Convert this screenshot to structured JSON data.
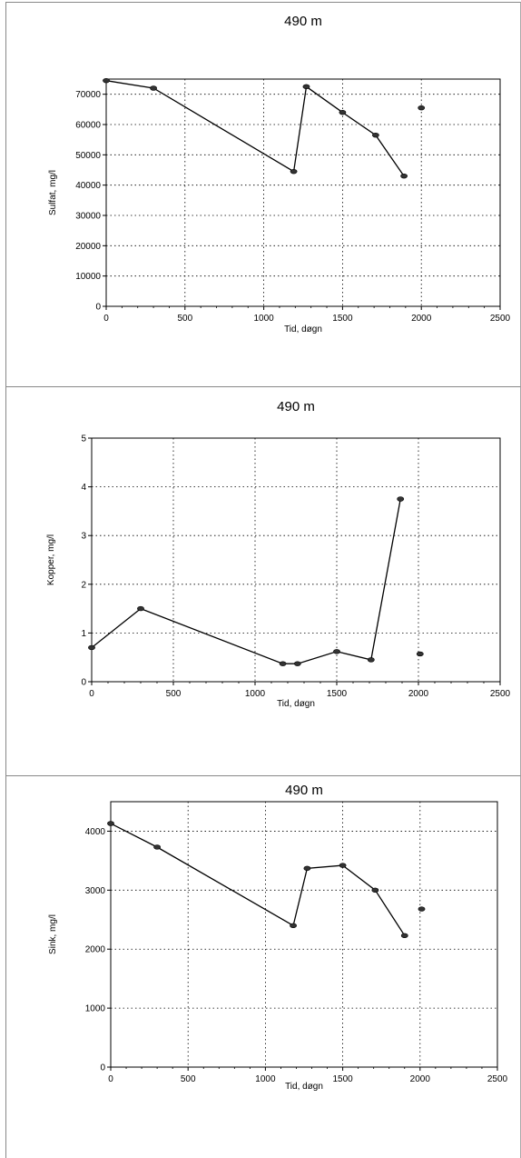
{
  "chart_data": [
    {
      "type": "line",
      "title": "490 m",
      "xlabel": "Tid, døgn",
      "ylabel": "Sulfat, mg/l",
      "xlim": [
        0,
        2500
      ],
      "ylim": [
        0,
        75000
      ],
      "xticks": [
        "0",
        "500",
        "1000",
        "1500",
        "2000",
        "2500"
      ],
      "yticks": [
        "0",
        "10000",
        "20000",
        "30000",
        "40000",
        "50000",
        "60000",
        "70000"
      ],
      "grid": true,
      "series": [
        {
          "x": [
            0,
            300,
            1190,
            1270,
            1500,
            1710,
            1890
          ],
          "y": [
            74500,
            72000,
            44500,
            72500,
            64000,
            56500,
            43000
          ]
        },
        {
          "x": [
            2000
          ],
          "y": [
            65500
          ]
        }
      ]
    },
    {
      "type": "line",
      "title": "490 m",
      "xlabel": "Tid, døgn",
      "ylabel": "Kopper, mg/l",
      "xlim": [
        0,
        2500
      ],
      "ylim": [
        0,
        5
      ],
      "xticks": [
        "0",
        "500",
        "1000",
        "1500",
        "2000",
        "2500"
      ],
      "yticks": [
        "0",
        "1",
        "2",
        "3",
        "4",
        "5"
      ],
      "grid": true,
      "series": [
        {
          "x": [
            0,
            300,
            1170,
            1260,
            1500,
            1710,
            1890
          ],
          "y": [
            0.7,
            1.5,
            0.37,
            0.37,
            0.62,
            0.45,
            3.75
          ]
        },
        {
          "x": [
            2010
          ],
          "y": [
            0.57
          ]
        }
      ]
    },
    {
      "type": "line",
      "title": "490 m",
      "xlabel": "Tid, døgn",
      "ylabel": "Sink, mg/l",
      "xlim": [
        0,
        2500
      ],
      "ylim": [
        0,
        4500
      ],
      "xticks": [
        "0",
        "500",
        "1000",
        "1500",
        "2000",
        "2500"
      ],
      "yticks": [
        "0",
        "1000",
        "2000",
        "3000",
        "4000"
      ],
      "grid": true,
      "series": [
        {
          "x": [
            0,
            300,
            1180,
            1270,
            1500,
            1710,
            1900
          ],
          "y": [
            4130,
            3730,
            2400,
            3370,
            3420,
            3000,
            2230
          ]
        },
        {
          "x": [
            2010
          ],
          "y": [
            2680
          ]
        }
      ]
    }
  ]
}
